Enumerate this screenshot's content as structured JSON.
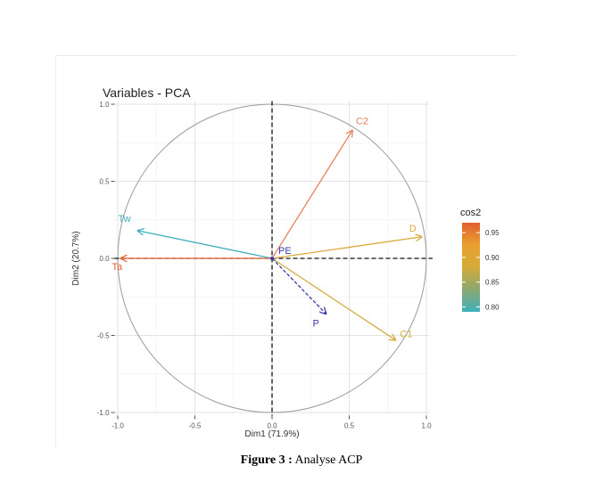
{
  "chart_data": {
    "type": "scatter",
    "title": "Variables - PCA",
    "xlabel": "Dim1 (71.9%)",
    "ylabel": "Dim2 (20.7%)",
    "xlim": [
      -1.0,
      1.0
    ],
    "ylim": [
      -1.0,
      1.0
    ],
    "x_ticks": [
      "-1.0",
      "-0.5",
      "0.0",
      "0.5",
      "1.0"
    ],
    "x_tick_values": [
      -1.0,
      -0.5,
      0.0,
      0.5,
      1.0
    ],
    "y_ticks": [
      "1.0",
      "0.5",
      "0.0",
      "-0.5",
      "-1.0"
    ],
    "y_tick_values": [
      1.0,
      0.5,
      0.0,
      -0.5,
      -1.0
    ],
    "grid": true,
    "correlation_circle": true,
    "variables": [
      {
        "name": "C2",
        "x": 0.52,
        "y": 0.83,
        "cos2": 0.93,
        "color": "#e8825c"
      },
      {
        "name": "D",
        "x": 0.97,
        "y": 0.14,
        "cos2": 0.92,
        "color": "#e0a63c"
      },
      {
        "name": "C1",
        "x": 0.8,
        "y": -0.53,
        "cos2": 0.91,
        "color": "#d4aa3a"
      },
      {
        "name": "Tw",
        "x": -0.87,
        "y": 0.18,
        "cos2": 0.8,
        "color": "#3fb0bd"
      },
      {
        "name": "Ta",
        "x": -0.98,
        "y": 0.0,
        "cos2": 0.97,
        "color": "#e2602f"
      },
      {
        "name": "P",
        "x": 0.35,
        "y": -0.36,
        "color": "#3a3aa8",
        "dashed": true
      },
      {
        "name": "PE",
        "x": 0.0,
        "y": 0.0,
        "color": "#3a3aa8",
        "dashed": true
      }
    ],
    "legend": {
      "title": "cos2",
      "placement": "right",
      "ticks": [
        "0.95",
        "0.90",
        "0.85",
        "0.80"
      ],
      "tick_values": [
        0.95,
        0.9,
        0.85,
        0.8
      ],
      "range": [
        0.79,
        0.97
      ],
      "colors": [
        "#e2602f",
        "#e8a030",
        "#d4aa3a",
        "#8aa870",
        "#3fb0bd"
      ]
    }
  },
  "caption": {
    "label": "Figure 3 :",
    "text": " Analyse ACP"
  }
}
